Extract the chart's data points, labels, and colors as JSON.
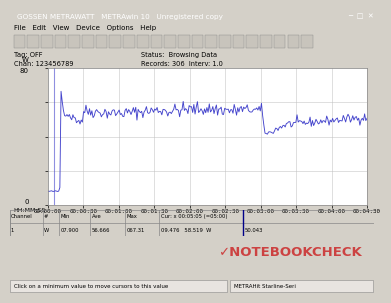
{
  "title": "GOSSEN METRAWATT   METRAwin 10   Unregistered copy",
  "bg_color": "#d4d0c8",
  "plot_bg": "#ffffff",
  "line_color": "#4444cc",
  "grid_color": "#c8c8c8",
  "title_bar_color": "#0a246a",
  "y_min": 0,
  "y_max": 80,
  "x_ticks": [
    "00:00:00",
    "00:00:30",
    "00:01:00",
    "00:01:30",
    "00:02:00",
    "00:02:30",
    "00:03:00",
    "00:03:30",
    "00:04:00",
    "00:04:30"
  ],
  "menu_items": "File   Edit   View   Device   Options   Help",
  "tag_off": "Tag: OFF",
  "chan": "Chan: 123456789",
  "status": "Status:  Browsing Data",
  "records": "Records: 306  Interv: 1.0",
  "footer_headers": "Channel  #    Min         Ave          Max         Cur: x 00:05:05 (=05:00)",
  "footer_data": "1   W   07.900   56.666   067.31   09.476   58.519  W   50.043",
  "bottom_left": "Click on a minimum value to move cursors to this value",
  "bottom_right": "METRAHit Starline-Seri",
  "nc_color": "#cc3333",
  "nc_text": "✓NOTEBOOKCHECK"
}
